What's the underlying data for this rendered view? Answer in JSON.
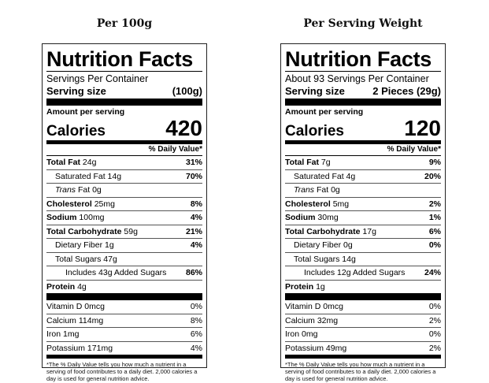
{
  "headings": {
    "left": "Per 100g",
    "right": "Per Serving Weight"
  },
  "labels": [
    {
      "title": "Nutrition Facts",
      "servings": "Servings Per Container",
      "serving_size_label": "Serving size",
      "serving_size_value": "(100g)",
      "amount_per_serving": "Amount per serving",
      "calories_label": "Calories",
      "calories_value": "420",
      "dv_header": "% Daily Value*",
      "total_fat": {
        "label": "Total Fat",
        "amount": "24g",
        "pct": "31%"
      },
      "sat_fat": {
        "label": "Saturated Fat 14g",
        "pct": "70%"
      },
      "trans_fat": {
        "label": "Trans",
        "amount": "Fat 0g"
      },
      "cholesterol": {
        "label": "Cholesterol",
        "amount": "25mg",
        "pct": "8%"
      },
      "sodium": {
        "label": "Sodium",
        "amount": "100mg",
        "pct": "4%"
      },
      "total_carb": {
        "label": "Total Carbohydrate",
        "amount": "59g",
        "pct": "21%"
      },
      "fiber": {
        "label": "Dietary Fiber 1g",
        "pct": "4%"
      },
      "total_sugars": {
        "label": "Total Sugars 47g"
      },
      "added_sugars": {
        "label": "Includes 43g Added Sugars",
        "pct": "86%"
      },
      "protein": {
        "label": "Protein",
        "amount": "4g"
      },
      "vitamin_d": {
        "label": "Vitamin D 0mcg",
        "pct": "0%"
      },
      "calcium": {
        "label": "Calcium 114mg",
        "pct": "8%"
      },
      "iron": {
        "label": "Iron 1mg",
        "pct": "6%"
      },
      "potassium": {
        "label": "Potassium 171mg",
        "pct": "4%"
      },
      "footnote": "*The % Daily Value tells you how much a nutrient in a serving of food contributes to a daily diet. 2,000 calories a day is used for general nutrition advice."
    },
    {
      "title": "Nutrition Facts",
      "servings": "About 93 Servings Per Container",
      "serving_size_label": "Serving size",
      "serving_size_value": "2 Pieces (29g)",
      "amount_per_serving": "Amount per serving",
      "calories_label": "Calories",
      "calories_value": "120",
      "dv_header": "% Daily Value*",
      "total_fat": {
        "label": "Total Fat",
        "amount": "7g",
        "pct": "9%"
      },
      "sat_fat": {
        "label": "Saturated Fat 4g",
        "pct": "20%"
      },
      "trans_fat": {
        "label": "Trans",
        "amount": "Fat 0g"
      },
      "cholesterol": {
        "label": "Cholesterol",
        "amount": "5mg",
        "pct": "2%"
      },
      "sodium": {
        "label": "Sodium",
        "amount": "30mg",
        "pct": "1%"
      },
      "total_carb": {
        "label": "Total Carbohydrate",
        "amount": "17g",
        "pct": "6%"
      },
      "fiber": {
        "label": "Dietary Fiber 0g",
        "pct": "0%"
      },
      "total_sugars": {
        "label": "Total Sugars 14g"
      },
      "added_sugars": {
        "label": "Includes 12g Added Sugars",
        "pct": "24%"
      },
      "protein": {
        "label": "Protein",
        "amount": "1g"
      },
      "vitamin_d": {
        "label": "Vitamin D 0mcg",
        "pct": "0%"
      },
      "calcium": {
        "label": "Calcium 32mg",
        "pct": "2%"
      },
      "iron": {
        "label": "Iron 0mg",
        "pct": "0%"
      },
      "potassium": {
        "label": "Potassium 49mg",
        "pct": "2%"
      },
      "footnote": "*The % Daily Value tells you how much a nutrient in a serving of food contributes to a daily diet. 2,000 calories a day is used for general nutrition advice."
    }
  ]
}
